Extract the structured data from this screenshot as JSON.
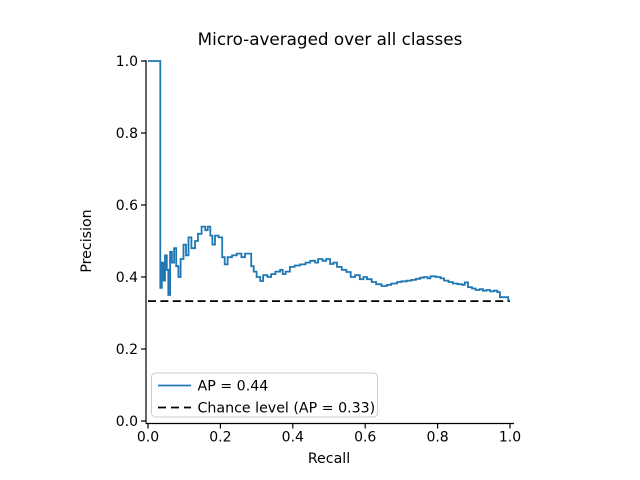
{
  "chart_data": {
    "type": "line",
    "title": "Micro-averaged over all classes",
    "xlabel": "Recall",
    "ylabel": "Precision",
    "xlim": [
      0.0,
      1.0
    ],
    "ylim": [
      0.0,
      1.0
    ],
    "x_ticks": [
      "0.0",
      "0.2",
      "0.4",
      "0.6",
      "0.8",
      "1.0"
    ],
    "x_tick_values": [
      0.0,
      0.2,
      0.4,
      0.6,
      0.8,
      1.0
    ],
    "y_ticks": [
      "0.0",
      "0.2",
      "0.4",
      "0.6",
      "0.8",
      "1.0"
    ],
    "y_tick_values": [
      0.0,
      0.2,
      0.4,
      0.6,
      0.8,
      1.0
    ],
    "grid": false,
    "legend_position": "lower left",
    "colors": {
      "curve": "#1f77b4",
      "chance": "#000000",
      "spine": "#000000",
      "legend_border": "#cccccc"
    },
    "series": [
      {
        "name": "AP = 0.44",
        "color": "#1f77b4",
        "style": "solid",
        "step": true,
        "points": [
          [
            0.0,
            1.0
          ],
          [
            0.034,
            0.37
          ],
          [
            0.038,
            0.44
          ],
          [
            0.042,
            0.39
          ],
          [
            0.047,
            0.46
          ],
          [
            0.052,
            0.42
          ],
          [
            0.056,
            0.35
          ],
          [
            0.061,
            0.47
          ],
          [
            0.066,
            0.44
          ],
          [
            0.072,
            0.48
          ],
          [
            0.078,
            0.43
          ],
          [
            0.084,
            0.4
          ],
          [
            0.09,
            0.45
          ],
          [
            0.098,
            0.49
          ],
          [
            0.105,
            0.46
          ],
          [
            0.112,
            0.51
          ],
          [
            0.12,
            0.48
          ],
          [
            0.13,
            0.5
          ],
          [
            0.138,
            0.52
          ],
          [
            0.148,
            0.54
          ],
          [
            0.158,
            0.53
          ],
          [
            0.165,
            0.54
          ],
          [
            0.172,
            0.515
          ],
          [
            0.178,
            0.49
          ],
          [
            0.185,
            0.515
          ],
          [
            0.195,
            0.51
          ],
          [
            0.205,
            0.455
          ],
          [
            0.212,
            0.435
          ],
          [
            0.22,
            0.455
          ],
          [
            0.232,
            0.46
          ],
          [
            0.245,
            0.465
          ],
          [
            0.258,
            0.455
          ],
          [
            0.268,
            0.465
          ],
          [
            0.285,
            0.43
          ],
          [
            0.292,
            0.415
          ],
          [
            0.3,
            0.4
          ],
          [
            0.31,
            0.389
          ],
          [
            0.318,
            0.405
          ],
          [
            0.33,
            0.4
          ],
          [
            0.34,
            0.408
          ],
          [
            0.352,
            0.415
          ],
          [
            0.365,
            0.42
          ],
          [
            0.372,
            0.408
          ],
          [
            0.38,
            0.415
          ],
          [
            0.392,
            0.428
          ],
          [
            0.405,
            0.432
          ],
          [
            0.42,
            0.435
          ],
          [
            0.435,
            0.44
          ],
          [
            0.448,
            0.445
          ],
          [
            0.462,
            0.44
          ],
          [
            0.47,
            0.45
          ],
          [
            0.482,
            0.445
          ],
          [
            0.492,
            0.45
          ],
          [
            0.503,
            0.436
          ],
          [
            0.512,
            0.44
          ],
          [
            0.522,
            0.428
          ],
          [
            0.535,
            0.42
          ],
          [
            0.548,
            0.414
          ],
          [
            0.56,
            0.4
          ],
          [
            0.572,
            0.405
          ],
          [
            0.585,
            0.394
          ],
          [
            0.595,
            0.4
          ],
          [
            0.605,
            0.394
          ],
          [
            0.618,
            0.386
          ],
          [
            0.63,
            0.38
          ],
          [
            0.645,
            0.375
          ],
          [
            0.66,
            0.378
          ],
          [
            0.672,
            0.382
          ],
          [
            0.688,
            0.386
          ],
          [
            0.7,
            0.388
          ],
          [
            0.715,
            0.39
          ],
          [
            0.728,
            0.392
          ],
          [
            0.74,
            0.395
          ],
          [
            0.752,
            0.398
          ],
          [
            0.762,
            0.4
          ],
          [
            0.772,
            0.396
          ],
          [
            0.78,
            0.402
          ],
          [
            0.795,
            0.4
          ],
          [
            0.808,
            0.396
          ],
          [
            0.818,
            0.39
          ],
          [
            0.83,
            0.386
          ],
          [
            0.842,
            0.382
          ],
          [
            0.855,
            0.38
          ],
          [
            0.868,
            0.378
          ],
          [
            0.875,
            0.385
          ],
          [
            0.884,
            0.372
          ],
          [
            0.895,
            0.368
          ],
          [
            0.905,
            0.364
          ],
          [
            0.916,
            0.366
          ],
          [
            0.925,
            0.362
          ],
          [
            0.935,
            0.364
          ],
          [
            0.945,
            0.36
          ],
          [
            0.955,
            0.362
          ],
          [
            0.965,
            0.358
          ],
          [
            0.972,
            0.344
          ],
          [
            0.99,
            0.344
          ],
          [
            0.995,
            0.335
          ],
          [
            1.0,
            0.335
          ]
        ]
      },
      {
        "name": "Chance level (AP = 0.33)",
        "color": "#000000",
        "style": "dashed",
        "step": false,
        "points": [
          [
            0.0,
            0.333
          ],
          [
            1.0,
            0.333
          ]
        ]
      }
    ],
    "average_precision": 0.44,
    "chance_level_ap": 0.33
  }
}
